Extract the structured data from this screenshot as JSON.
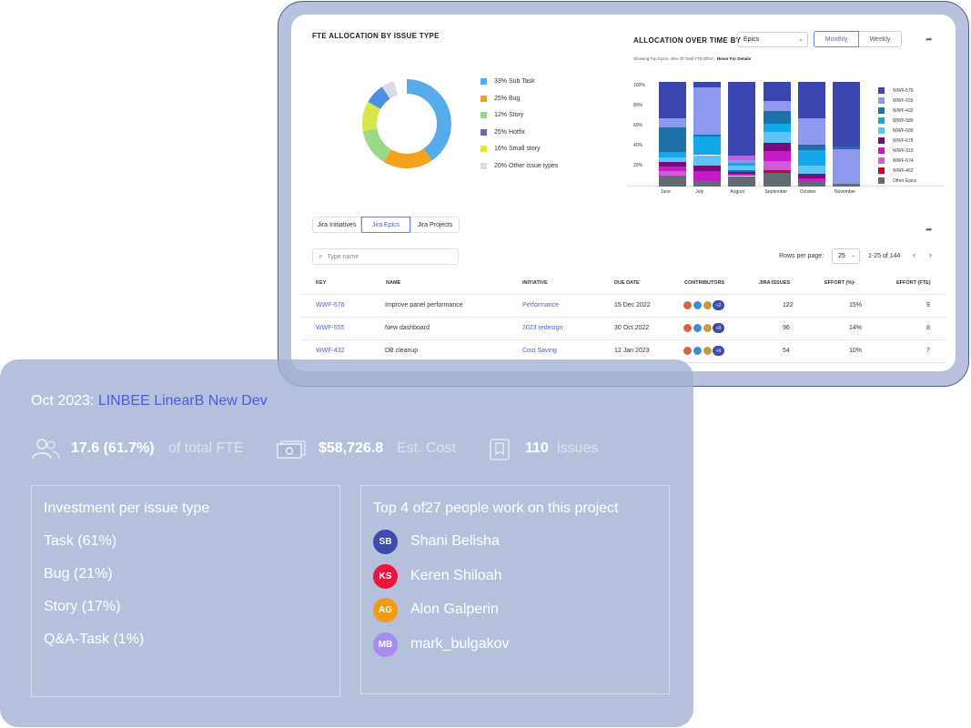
{
  "dashboard": {
    "fte_title": "FTE ALLOCATION BY ISSUE TYPE",
    "fte_legend": [
      {
        "label": "33% Sub Task",
        "color": "#56abea"
      },
      {
        "label": "25% Bug",
        "color": "#f6a11d"
      },
      {
        "label": "12% Story",
        "color": "#9bd98a"
      },
      {
        "label": "25% Hotfix",
        "color": "#6b6aa8"
      },
      {
        "label": "16% Small story",
        "color": "#d9e64a"
      },
      {
        "label": "20% Other issue types",
        "color": "#d6dbe8"
      }
    ],
    "alloc_title": "ALLOCATION OVER TIME BY",
    "alloc_select": "Epics",
    "toggle_monthly": "Monthly",
    "toggle_weekly": "Weekly",
    "alloc_sub": "Showing Top Epics, 46% Of Total FTE Effort -",
    "alloc_sub_hover": "Hover For Details",
    "y_ticks": [
      "100%",
      "80%",
      "60%",
      "40%",
      "20%"
    ],
    "months": [
      "June",
      "July",
      "August",
      "September",
      "October",
      "November"
    ],
    "bar_legend": [
      {
        "label": "WWF-576",
        "color": "#3b45b0"
      },
      {
        "label": "WWF-555",
        "color": "#8e98ee"
      },
      {
        "label": "WWF-432",
        "color": "#1f6fa8"
      },
      {
        "label": "WWF-589",
        "color": "#11a9ea"
      },
      {
        "label": "WWF-600",
        "color": "#5ec3f5"
      },
      {
        "label": "WWF-678",
        "color": "#7a0a7a"
      },
      {
        "label": "WWF-310",
        "color": "#c41bc4"
      },
      {
        "label": "WWF-674",
        "color": "#d05ad8"
      },
      {
        "label": "WWF-452",
        "color": "#c00a2a"
      },
      {
        "label": "Other Epics",
        "color": "#626a74"
      }
    ],
    "tabs": [
      "Jira Initiatives",
      "Jira Epics",
      "Jira Projects"
    ],
    "search_placeholder": "Type name",
    "rows_per_page_label": "Rows per page:",
    "rows_per_page_value": "25",
    "pagination": "1-25 of 144",
    "table_headers": [
      "KEY",
      "NAME",
      "INITIATIVE",
      "DUE DATE",
      "CONTRIBUTORS",
      "JIRA ISSUES",
      "EFFORT (%)",
      "EFFORT (FTE)"
    ],
    "rows": [
      {
        "key": "WWF-576",
        "name": "Improve panel performance",
        "initiative": "Performance",
        "due": "15 Dec 2022",
        "more": "+2",
        "issues": "122",
        "effort_pct": "15%",
        "effort_fte": "9"
      },
      {
        "key": "WWF-555",
        "name": "New dashboard",
        "initiative": "2023 redesign",
        "due": "30 Oct 2022",
        "more": "+8",
        "issues": "96",
        "effort_pct": "14%",
        "effort_fte": "8"
      },
      {
        "key": "WWF-432",
        "name": "DB cleanup",
        "initiative": "Cost Saving",
        "due": "12 Jan 2023",
        "more": "+6",
        "issues": "54",
        "effort_pct": "10%",
        "effort_fte": "7"
      }
    ]
  },
  "overlay": {
    "date_label": "Oct 2023:",
    "project_name": "LINBEE LinearB New Dev",
    "fte_value": "17.6 (61.7%)",
    "fte_suffix": "of total FTE",
    "cost_value": "$58,726.8",
    "cost_suffix": "Est. Cost",
    "issues_value": "110",
    "issues_suffix": "issues",
    "investment_title": "Investment per issue type",
    "investment_items": [
      "Task (61%)",
      "Bug (21%)",
      "Story (17%)",
      "Q&A-Task (1%)"
    ],
    "people_title": "Top 4 of27 people work on this project",
    "people": [
      {
        "initials": "SB",
        "name": "Shani Belisha",
        "color": "#3d4dab"
      },
      {
        "initials": "KS",
        "name": "Keren Shiloah",
        "color": "#e8163c"
      },
      {
        "initials": "AG",
        "name": "Alon Galperin",
        "color": "#f39a0e"
      },
      {
        "initials": "MB",
        "name": "mark_bulgakov",
        "color": "#a78bf0"
      }
    ]
  }
}
